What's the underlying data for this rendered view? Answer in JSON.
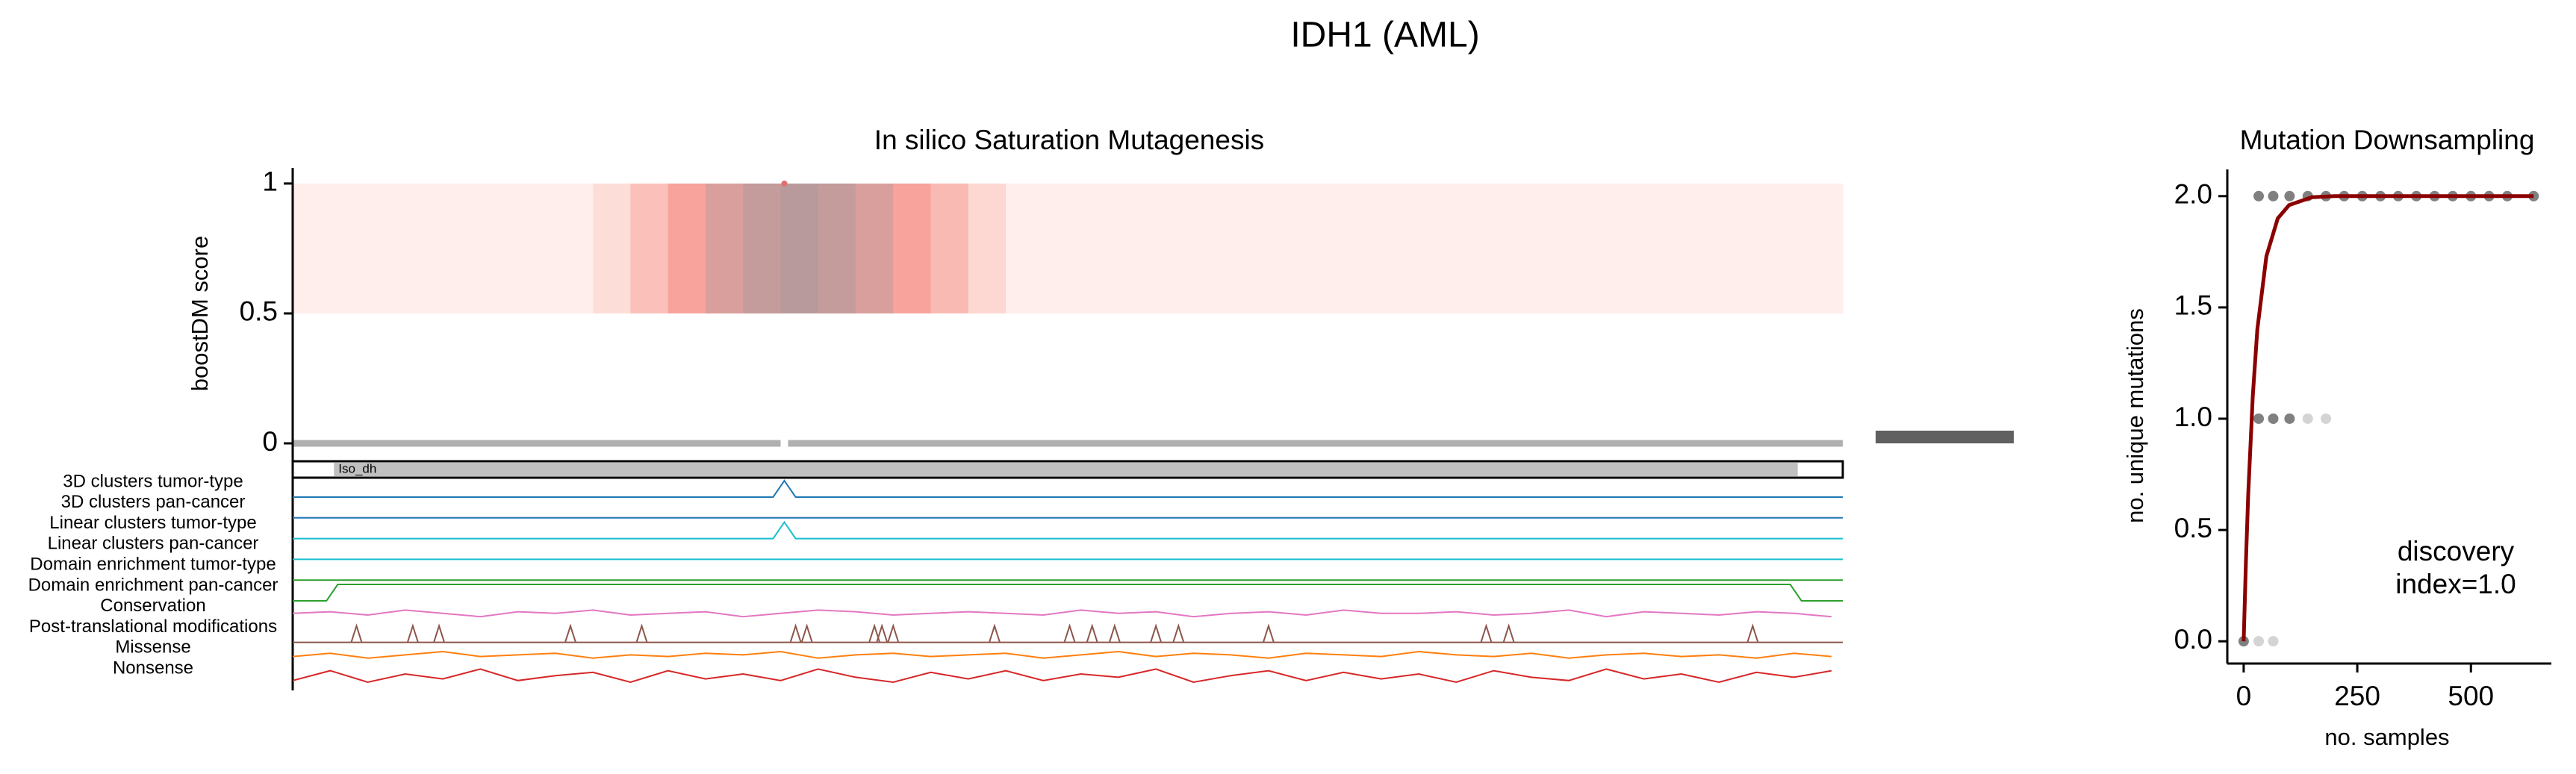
{
  "title": "IDH1 (AML)",
  "chart_data": [
    {
      "type": "mutagenesis",
      "title": "In silico Saturation Mutagenesis",
      "y_label": "boostDM score",
      "xlim": [
        1,
        414
      ],
      "ylim": [
        0,
        1.06
      ],
      "yticks": [
        0,
        0.5,
        1
      ],
      "positions": [
        1,
        11,
        21,
        31,
        41,
        51,
        61,
        71,
        81,
        91,
        101,
        111,
        121,
        131,
        141,
        151,
        161,
        171,
        181,
        191,
        201,
        211,
        221,
        231,
        241,
        251,
        261,
        271,
        281,
        291,
        301,
        311,
        321,
        331,
        341,
        351,
        361,
        371,
        381,
        391,
        401,
        411
      ],
      "heatmap": {
        "values": [
          0.05,
          0.05,
          0.05,
          0.05,
          0.05,
          0.05,
          0.05,
          0.05,
          0.2,
          0.45,
          0.7,
          0.85,
          0.95,
          1.0,
          0.95,
          0.85,
          0.7,
          0.5,
          0.25,
          0.05,
          0.05,
          0.05,
          0.05,
          0.05,
          0.05,
          0.05,
          0.05,
          0.05,
          0.05,
          0.05,
          0.05,
          0.05,
          0.05,
          0.05,
          0.05,
          0.05,
          0.05,
          0.05,
          0.05,
          0.05,
          0.05,
          0.05
        ],
        "colormap": [
          "#fff4f1",
          "#f8a39b",
          "#b99a9c"
        ]
      },
      "points": {
        "x": [
          132
        ],
        "y": [
          1
        ],
        "color": "#e07070"
      },
      "domain": {
        "label": "Iso_dh",
        "start": 12,
        "end": 402,
        "color": "#c0c0c0"
      },
      "tracks": [
        {
          "name": "3D clusters tumor-type",
          "color": "#1f77b4",
          "x": [
            1,
            129,
            132,
            135,
            414
          ],
          "values": [
            0,
            0,
            1,
            0,
            0
          ]
        },
        {
          "name": "3D clusters pan-cancer",
          "color": "#1f77b4",
          "x": [
            1,
            414
          ],
          "values": [
            0,
            0
          ]
        },
        {
          "name": "Linear clusters tumor-type",
          "color": "#17becf",
          "x": [
            1,
            129,
            132,
            135,
            414
          ],
          "values": [
            0,
            0,
            1,
            0,
            0
          ]
        },
        {
          "name": "Linear clusters pan-cancer",
          "color": "#17becf",
          "x": [
            1,
            414
          ],
          "values": [
            0,
            0
          ]
        },
        {
          "name": "Domain enrichment tumor-type",
          "color": "#2ca02c",
          "x": [
            1,
            414
          ],
          "values": [
            0,
            0
          ]
        },
        {
          "name": "Domain enrichment pan-cancer",
          "color": "#2ca02c",
          "x": [
            1,
            10,
            13,
            400,
            403,
            414
          ],
          "values": [
            0,
            0,
            1,
            1,
            0,
            0
          ]
        },
        {
          "name": "Conservation",
          "color": "#e377c2",
          "values": [
            0.5,
            0.6,
            0.4,
            0.7,
            0.5,
            0.3,
            0.6,
            0.5,
            0.7,
            0.4,
            0.5,
            0.6,
            0.3,
            0.5,
            0.7,
            0.6,
            0.4,
            0.5,
            0.6,
            0.5,
            0.4,
            0.7,
            0.5,
            0.6,
            0.3,
            0.5,
            0.6,
            0.4,
            0.7,
            0.5,
            0.5,
            0.6,
            0.4,
            0.5,
            0.7,
            0.3,
            0.6,
            0.5,
            0.4,
            0.6,
            0.5,
            0.3
          ]
        },
        {
          "name": "Post-translational modifications",
          "color": "#8c564b",
          "spikes": true,
          "x": [
            18,
            33,
            40,
            75,
            94,
            135,
            138,
            156,
            158,
            161,
            188,
            208,
            214,
            220,
            231,
            237,
            261,
            319,
            325,
            390
          ],
          "values": [
            1,
            1,
            1,
            1,
            1,
            1,
            1,
            1,
            1,
            1,
            1,
            1,
            1,
            1,
            1,
            1,
            1,
            1,
            1,
            1
          ]
        },
        {
          "name": "Missense",
          "color": "#ff7f0e",
          "values": [
            0.4,
            0.6,
            0.3,
            0.5,
            0.7,
            0.4,
            0.5,
            0.6,
            0.3,
            0.5,
            0.4,
            0.6,
            0.5,
            0.7,
            0.3,
            0.5,
            0.6,
            0.4,
            0.5,
            0.6,
            0.3,
            0.5,
            0.7,
            0.4,
            0.6,
            0.5,
            0.3,
            0.6,
            0.5,
            0.4,
            0.7,
            0.5,
            0.4,
            0.6,
            0.3,
            0.5,
            0.6,
            0.4,
            0.5,
            0.3,
            0.6,
            0.4
          ]
        },
        {
          "name": "Nonsense",
          "color": "#d62728",
          "values": [
            0.2,
            0.8,
            0.1,
            0.6,
            0.3,
            0.9,
            0.2,
            0.5,
            0.7,
            0.1,
            0.8,
            0.3,
            0.6,
            0.2,
            0.9,
            0.4,
            0.1,
            0.7,
            0.3,
            0.8,
            0.2,
            0.6,
            0.4,
            0.9,
            0.1,
            0.5,
            0.8,
            0.2,
            0.7,
            0.3,
            0.6,
            0.1,
            0.8,
            0.4,
            0.2,
            0.9,
            0.3,
            0.6,
            0.1,
            0.7,
            0.4,
            0.8
          ]
        }
      ]
    },
    {
      "type": "scatter",
      "title": "Mutation Downsampling",
      "x_label": "no. samples",
      "y_label": "no. unique mutations",
      "xlim": [
        -36,
        677
      ],
      "ylim": [
        -0.1,
        2.12
      ],
      "xticks": [
        0,
        250,
        500
      ],
      "yticks": [
        {
          "value": 0,
          "label": "0.0"
        },
        {
          "value": 0.5,
          "label": "0.5"
        },
        {
          "value": 1,
          "label": "1.0"
        },
        {
          "value": 1.5,
          "label": "1.5"
        },
        {
          "value": 2,
          "label": "2.0"
        }
      ],
      "series": [
        {
          "color": "#808080",
          "x": [
            33,
            65,
            101,
            141,
            181,
            221,
            261,
            301,
            340,
            380,
            420,
            460,
            500,
            540,
            580,
            638,
            33,
            65,
            101,
            0
          ],
          "y": [
            2,
            2,
            2,
            2,
            2,
            2,
            2,
            2,
            2,
            2,
            2,
            2,
            2,
            2,
            2,
            2,
            1,
            1,
            1,
            0
          ]
        },
        {
          "color": "#d4d4d4",
          "x": [
            141,
            181,
            33,
            65
          ],
          "y": [
            1,
            1,
            0,
            0
          ]
        }
      ],
      "fit": {
        "color": "#8b0000",
        "x": [
          0,
          5,
          10,
          20,
          30,
          50,
          75,
          100,
          150,
          200,
          250,
          300,
          400,
          500,
          638
        ],
        "y": [
          0,
          0.36,
          0.66,
          1.1,
          1.4,
          1.73,
          1.9,
          1.96,
          1.995,
          2,
          2,
          2,
          2,
          2,
          2
        ]
      },
      "annotation": [
        "discovery",
        "index=1.0"
      ],
      "annotation_color": "#8b0000"
    }
  ]
}
